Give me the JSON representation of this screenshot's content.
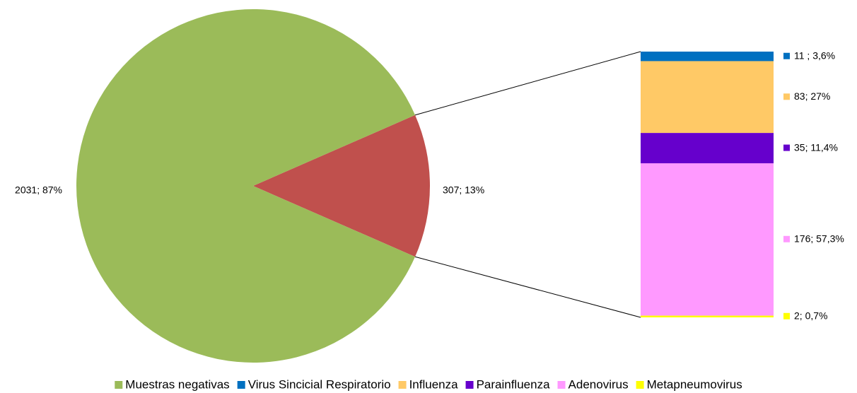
{
  "chart_data": {
    "type": "bar-of-pie",
    "pie": {
      "names": [
        "Muestras negativas",
        null
      ],
      "values": [
        2031,
        307
      ],
      "value_labels": [
        "2031; 87%",
        "307; 13%"
      ],
      "colors": [
        "#9bbb59",
        "#c0504d"
      ]
    },
    "series": [
      {
        "name": "Virus Sincicial Respiratorio",
        "color": "#0070c0",
        "values": [
          11
        ],
        "value_labels": [
          "11 ; 3,6%"
        ]
      },
      {
        "name": "Influenza",
        "color": "#ffc966",
        "values": [
          83
        ],
        "value_labels": [
          "83; 27%"
        ]
      },
      {
        "name": "Parainfluenza",
        "color": "#6600cc",
        "values": [
          35
        ],
        "value_labels": [
          "35; 11,4%"
        ]
      },
      {
        "name": "Adenovirus",
        "color": "#ff99ff",
        "values": [
          176
        ],
        "value_labels": [
          "176; 57,3%"
        ]
      },
      {
        "name": "Metapneumovirus",
        "color": "#ffff00",
        "values": [
          2
        ],
        "value_labels": [
          "2; 0,7%"
        ]
      }
    ]
  }
}
